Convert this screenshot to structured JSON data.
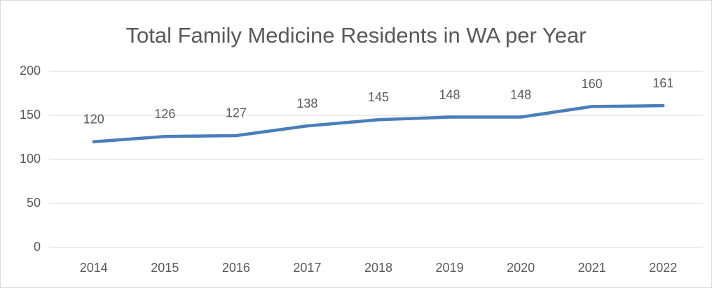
{
  "chart_data": {
    "type": "line",
    "title": "Total Family Medicine Residents in WA per Year",
    "categories": [
      "2014",
      "2015",
      "2016",
      "2017",
      "2018",
      "2019",
      "2020",
      "2021",
      "2022"
    ],
    "values": [
      120,
      126,
      127,
      138,
      145,
      148,
      148,
      160,
      161
    ],
    "color": "#4a7ebb",
    "ylim": [
      0,
      200
    ],
    "yticks": [
      0,
      50,
      100,
      150,
      200
    ],
    "grid": true,
    "legend": false
  }
}
